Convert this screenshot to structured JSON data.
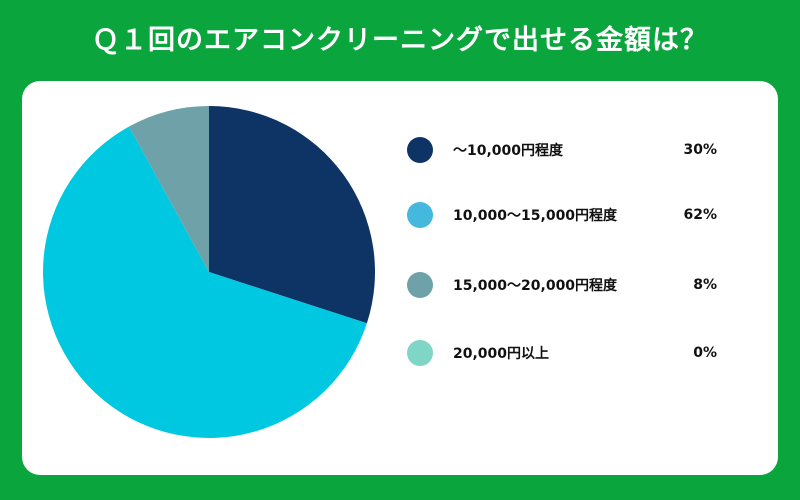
{
  "title": "Ｑ１回のエアコンクリーニングで出せる金額は？",
  "chart_data": {
    "type": "pie",
    "title": "Ｑ１回のエアコンクリーニングで出せる金額は？",
    "legend_position": "right",
    "slices": [
      {
        "label": "～10,000円程度",
        "value": 30,
        "value_label": "30%",
        "color": "#0e3466"
      },
      {
        "label": "10,000～15,000円程度",
        "value": 62,
        "value_label": "62%",
        "color": "#00c8e0"
      },
      {
        "label": "15,000～20,000円程度",
        "value": 8,
        "value_label": "8%",
        "color": "#6fa2a8"
      },
      {
        "label": "20,000円以上",
        "value": 0,
        "value_label": "0%",
        "color": "#7fd6c6"
      }
    ],
    "legend_dot_colors": [
      "#0e3466",
      "#45b8de",
      "#6fa2a8",
      "#7fd6c6"
    ]
  }
}
